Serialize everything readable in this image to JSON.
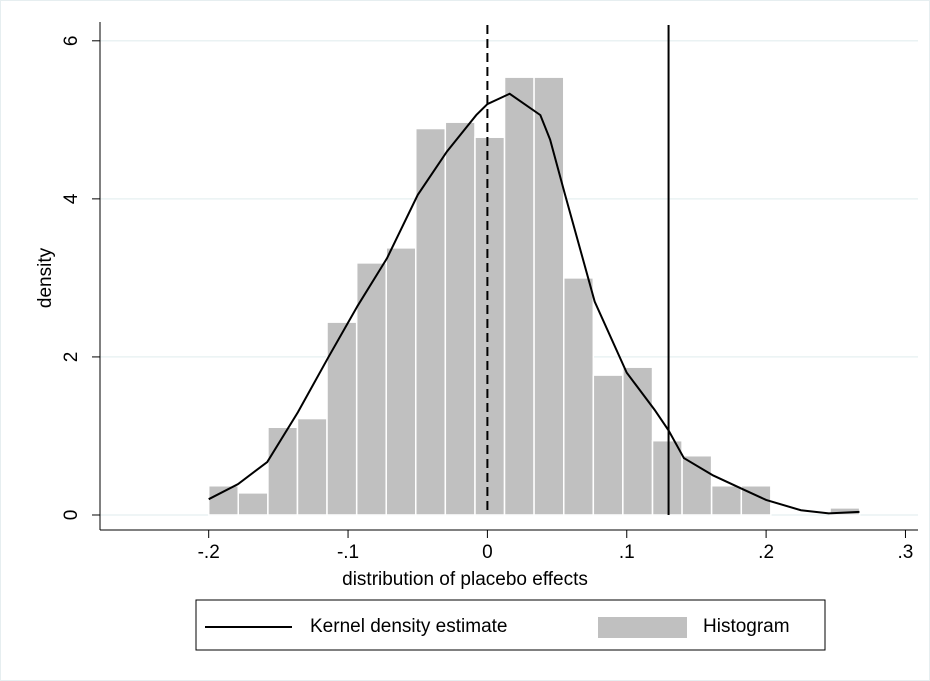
{
  "chart_data": {
    "type": "histogram",
    "x_label": "distribution of placebo effects",
    "y_label": "density",
    "bins": [
      -0.2,
      -0.1788,
      -0.1575,
      -0.1363,
      -0.1151,
      -0.0938,
      -0.0726,
      -0.0514,
      -0.0302,
      -0.0089,
      0.0123,
      0.0335,
      0.0548,
      0.076,
      0.0972,
      0.1185,
      0.1397,
      0.1609,
      0.1822,
      0.2034,
      0.2246,
      0.2459,
      0.2671
    ],
    "series": [
      {
        "name": "Kernel density estimate",
        "type": "line",
        "color": "#000000",
        "x": [
          -0.2,
          -0.179,
          -0.158,
          -0.136,
          -0.114,
          -0.093,
          -0.072,
          -0.05,
          -0.029,
          -0.008,
          0,
          0.016,
          0.038,
          0.045,
          0.055,
          0.077,
          0.1,
          0.12,
          0.13,
          0.141,
          0.162,
          0.184,
          0.2,
          0.225,
          0.245,
          0.267
        ],
        "values": [
          0.2,
          0.39,
          0.67,
          1.3,
          2.0,
          2.65,
          3.25,
          4.05,
          4.6,
          5.06,
          5.2,
          5.33,
          5.06,
          4.75,
          4.1,
          2.7,
          1.8,
          1.33,
          1.07,
          0.72,
          0.5,
          0.32,
          0.19,
          0.06,
          0.02,
          0.04
        ]
      },
      {
        "name": "Histogram",
        "type": "histogram",
        "color": "#c0c0c0",
        "values": [
          0.37,
          0.28,
          1.11,
          1.22,
          2.44,
          3.19,
          3.38,
          4.89,
          4.97,
          4.78,
          5.54,
          5.54,
          3.0,
          1.77,
          1.87,
          0.94,
          0.75,
          0.37,
          0.37,
          0,
          0,
          0.09
        ]
      }
    ],
    "reference_lines": [
      {
        "value": 0,
        "style": "dashed"
      },
      {
        "value": 0.13,
        "style": "solid"
      }
    ],
    "xlim": [
      -0.278,
      0.309
    ],
    "xticks": [
      {
        "value": -0.2,
        "label": "-.2"
      },
      {
        "value": -0.1,
        "label": "-.1"
      },
      0,
      {
        "value": 0.1,
        "label": ".1"
      },
      {
        "value": 0.2,
        "label": ".2"
      },
      {
        "value": 0.3,
        "label": ".3"
      }
    ],
    "ylim": [
      -0.19,
      6.2
    ],
    "yticks": [
      0,
      2,
      4,
      6
    ],
    "grid": true,
    "legend": "bottom"
  }
}
